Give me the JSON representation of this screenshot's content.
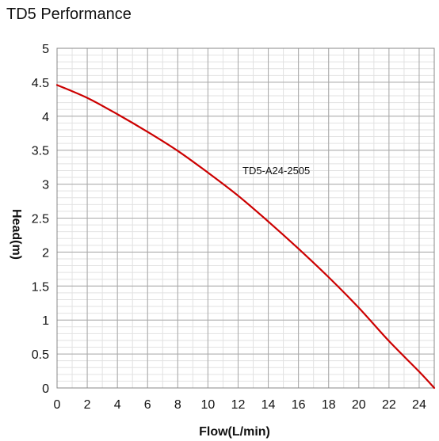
{
  "chart_data": {
    "type": "line",
    "title": "TD5 Performance",
    "xlabel": "Flow(L/min)",
    "ylabel": "Head(m)",
    "xlim": [
      0,
      25
    ],
    "ylim": [
      0,
      5
    ],
    "x_ticks": [
      "0",
      "2",
      "4",
      "6",
      "8",
      "10",
      "12",
      "14",
      "16",
      "18",
      "20",
      "22",
      "24"
    ],
    "y_ticks": [
      "0",
      "0.5",
      "1",
      "1.5",
      "2",
      "2.5",
      "3",
      "3.5",
      "4",
      "4.5",
      "5"
    ],
    "grid": true,
    "minor_grid": true,
    "annotation": "TD5-A24-2505",
    "series": [
      {
        "color": "#cc0000",
        "x": [
          0,
          2,
          4,
          6,
          8,
          10,
          12,
          14,
          16,
          18,
          20,
          22,
          24,
          25
        ],
        "y": [
          4.46,
          4.27,
          4.03,
          3.77,
          3.49,
          3.17,
          2.83,
          2.45,
          2.05,
          1.63,
          1.18,
          0.69,
          0.24,
          0.0
        ]
      }
    ]
  }
}
